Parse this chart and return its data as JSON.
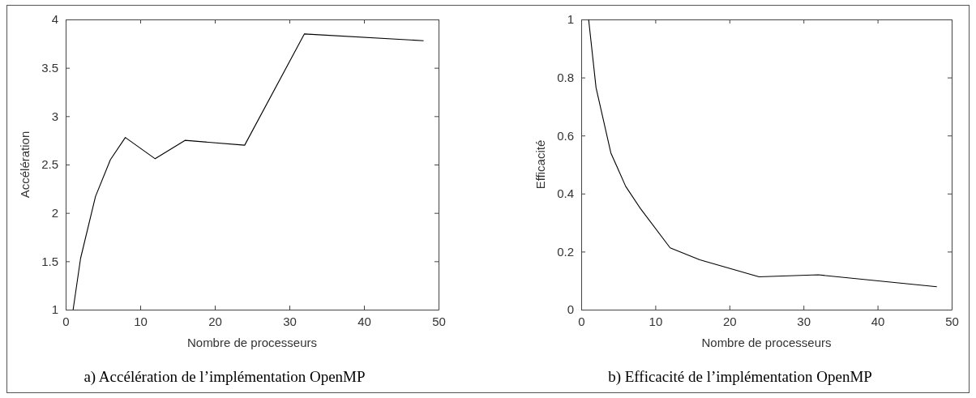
{
  "chart_data": [
    {
      "type": "line",
      "title": "a) Accélération de l’implémentation OpenMP",
      "xlabel": "Nombre de processeurs",
      "ylabel": "Accélération",
      "x": [
        1,
        2,
        4,
        6,
        8,
        12,
        16,
        24,
        32,
        48
      ],
      "series": [
        {
          "color": "#000000",
          "values": [
            1,
            1.53,
            2.17,
            2.55,
            2.78,
            2.56,
            2.75,
            2.7,
            3.85,
            3.78
          ]
        }
      ],
      "xlim": [
        0,
        50
      ],
      "xticks": [
        0,
        10,
        20,
        30,
        40,
        50
      ],
      "ylim": [
        1,
        4
      ],
      "yticks": [
        1,
        1.5,
        2,
        2.5,
        3,
        3.5,
        4
      ],
      "grid": false,
      "marker": "none",
      "line_style": "solid"
    },
    {
      "type": "line",
      "title": "b) Efficacité de l’implémentation OpenMP",
      "xlabel": "Nombre de processeurs",
      "ylabel": "Efficacité",
      "x": [
        1,
        2,
        4,
        6,
        8,
        12,
        16,
        24,
        32,
        48
      ],
      "series": [
        {
          "color": "#000000",
          "values": [
            1,
            0.765,
            0.54,
            0.425,
            0.348,
            0.213,
            0.172,
            0.113,
            0.12,
            0.079
          ]
        }
      ],
      "xlim": [
        0,
        50
      ],
      "xticks": [
        0,
        10,
        20,
        30,
        40,
        50
      ],
      "ylim": [
        0,
        1
      ],
      "yticks": [
        0,
        0.2,
        0.4,
        0.6,
        0.8,
        1
      ],
      "grid": false,
      "marker": "none",
      "line_style": "solid"
    }
  ]
}
